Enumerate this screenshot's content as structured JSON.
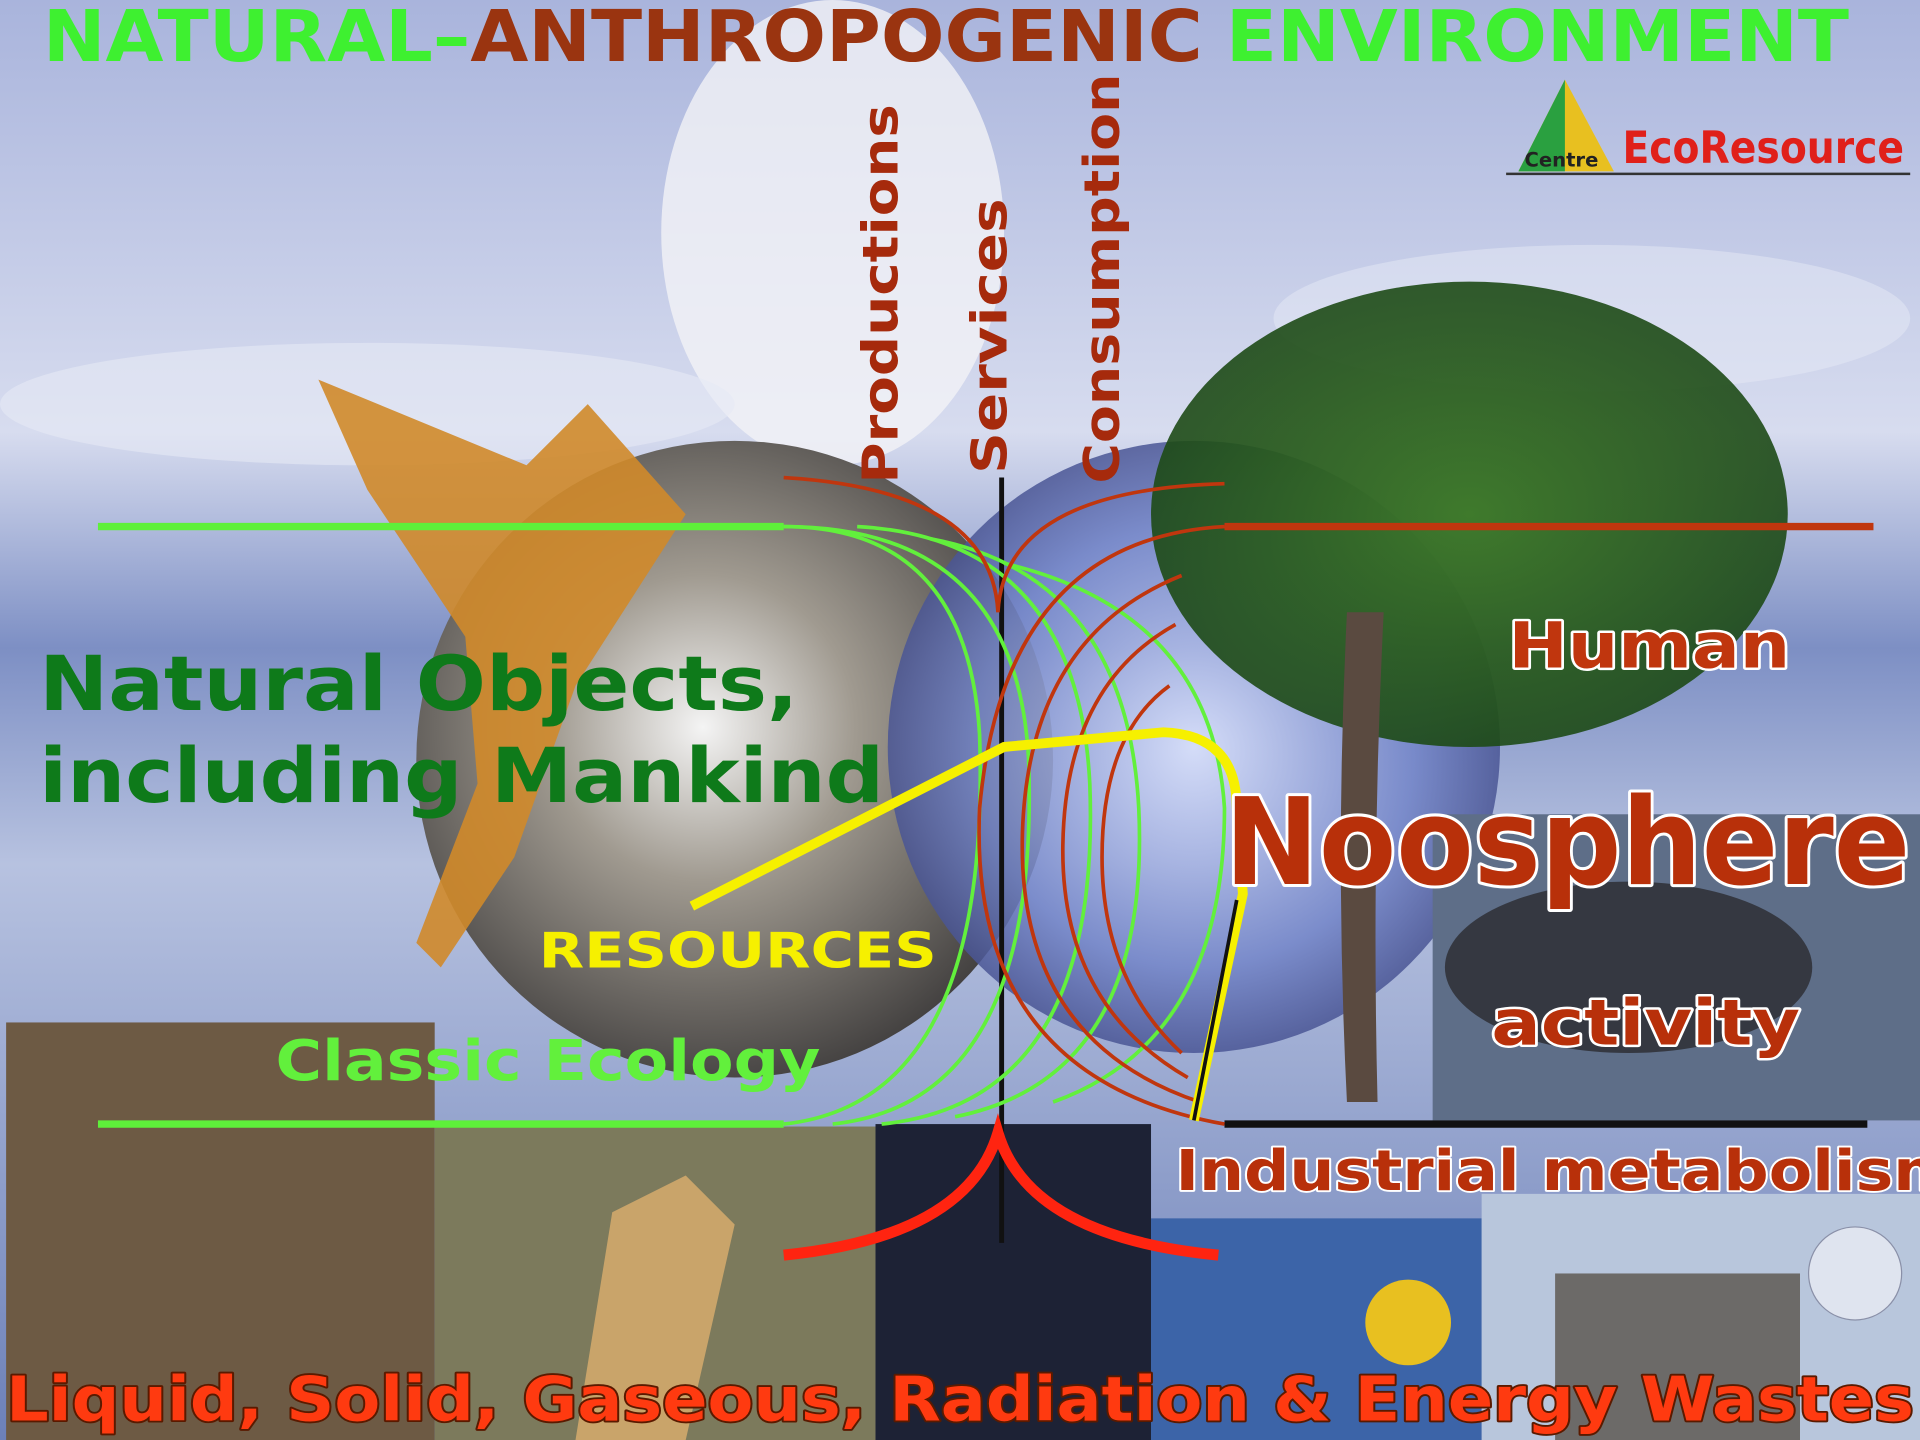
{
  "title": [
    "NATURAL–",
    "ANTHROPOGENIC",
    "ENVIRONMENT"
  ],
  "logo": {
    "centre": "Centre",
    "name": "EcoResource"
  },
  "flows": [
    "Productions",
    "Services",
    "Consumption"
  ],
  "natural_objects": [
    "Natural Objects,",
    "including Mankind"
  ],
  "noosphere": {
    "top": "Human",
    "main": "Noosphere",
    "bottom": "activity"
  },
  "resources": "RESOURCES",
  "classic_ecology": "Classic Ecology",
  "industrial_metabolism": "Industrial metabolism",
  "wastes": "Liquid, Solid, Gaseous, Radiation & Energy Wastes"
}
